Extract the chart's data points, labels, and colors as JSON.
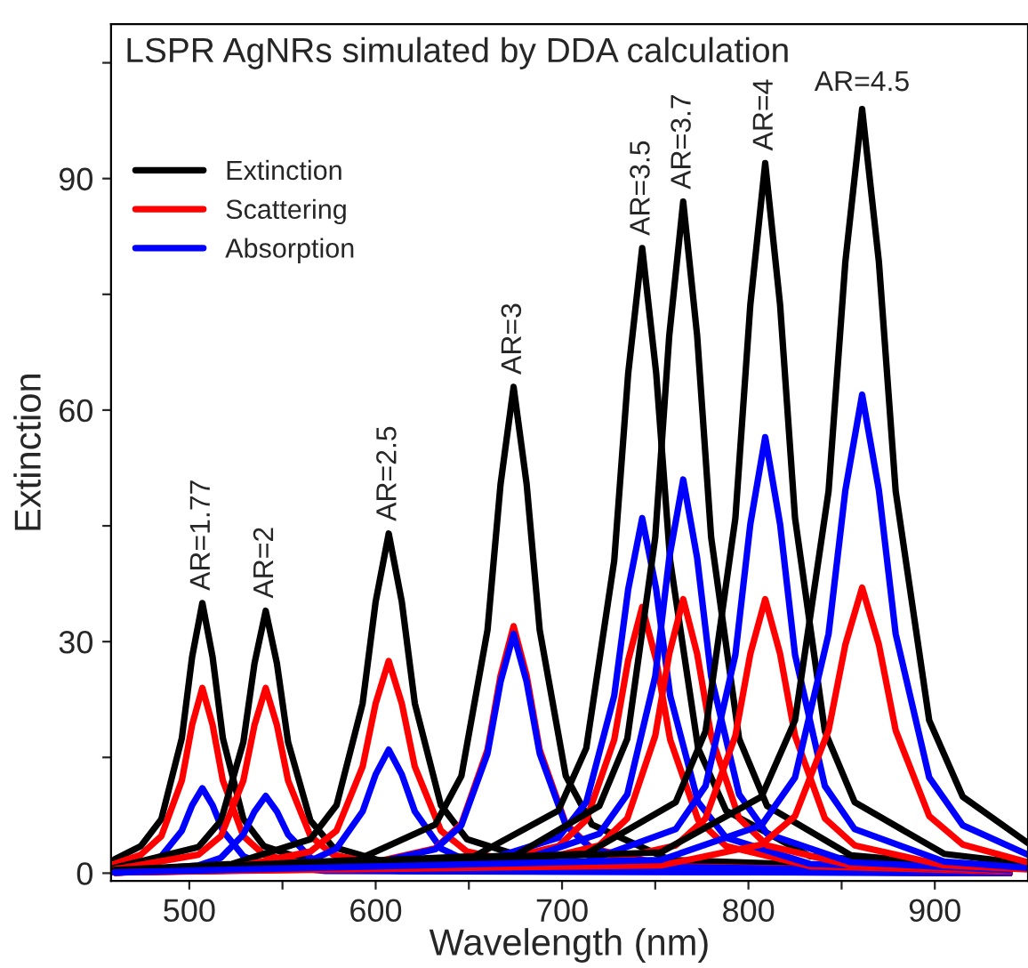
{
  "chart_data": {
    "type": "line",
    "title": "LSPR AgNRs simulated by DDA calculation",
    "xlabel": "Wavelength (nm)",
    "ylabel": "Extinction",
    "xlim": [
      458,
      950
    ],
    "ylim": [
      -1,
      110
    ],
    "xticks": [
      500,
      {
        "value": 550,
        "label": null
      },
      600,
      {
        "value": 650,
        "label": null
      },
      700,
      {
        "value": 750,
        "label": null
      },
      800,
      {
        "value": 850,
        "label": null
      },
      900
    ],
    "yticks": [
      0,
      {
        "value": 15,
        "label": null
      },
      30,
      {
        "value": 45,
        "label": null
      },
      60,
      {
        "value": 75,
        "label": null
      },
      90,
      {
        "value": 105,
        "label": null
      }
    ],
    "grid": false,
    "legend": "top left",
    "marker": "none",
    "line_style": "solid",
    "series": [
      {
        "name": "Extinction",
        "color": "#000000",
        "x": [
          460,
          474,
          485,
          496,
          501.5,
          507,
          512.5,
          518,
          529,
          540,
          573,
          940
        ],
        "values": [
          1.8,
          3.5,
          7,
          17.5,
          28,
          35,
          28,
          17.5,
          7,
          3.5,
          0.9,
          0
        ]
      },
      {
        "name": "Scattering",
        "color": "#ff0000",
        "x": [
          460,
          474,
          485,
          496,
          501.5,
          507,
          512.5,
          518,
          529,
          540,
          573,
          940
        ],
        "values": [
          1.2,
          2.4,
          4.8,
          12,
          19.2,
          24,
          19.2,
          12,
          4.8,
          2.4,
          0.6,
          0
        ]
      },
      {
        "name": "Absorption",
        "color": "#0000ff",
        "x": [
          460,
          474,
          485,
          496,
          501.5,
          507,
          512.5,
          518,
          529,
          540,
          573,
          940
        ],
        "values": [
          0.6,
          1.1,
          2.2,
          5.5,
          8.8,
          11,
          8.8,
          5.5,
          2.2,
          1.1,
          0.3,
          0
        ]
      },
      {
        "color": "#000000",
        "x": [
          460,
          505,
          517,
          529,
          535,
          541,
          547,
          553,
          565,
          577,
          613,
          940
        ],
        "values": [
          0.7,
          3.4,
          6.8,
          17,
          27.2,
          34,
          27.2,
          17,
          6.8,
          3.4,
          0.9,
          0
        ]
      },
      {
        "color": "#ff0000",
        "x": [
          460,
          505,
          517,
          529,
          535,
          541,
          547,
          553,
          565,
          577,
          613,
          940
        ],
        "values": [
          0.5,
          2.4,
          4.8,
          12,
          19.2,
          24,
          19.2,
          12,
          4.8,
          2.4,
          0.6,
          0
        ]
      },
      {
        "color": "#0000ff",
        "x": [
          460,
          505,
          517,
          529,
          535,
          541,
          547,
          553,
          565,
          577,
          613,
          940
        ],
        "values": [
          0.2,
          1,
          2,
          5,
          8,
          10,
          8,
          5,
          2,
          1,
          0.3,
          0
        ]
      },
      {
        "color": "#000000",
        "x": [
          460,
          523,
          565,
          579,
          593,
          600,
          607,
          614,
          621,
          635,
          649,
          691,
          940
        ],
        "values": [
          0.4,
          1.2,
          4.4,
          8.8,
          22,
          35.2,
          44,
          35.2,
          22,
          8.8,
          4.4,
          1.2,
          0.1
        ]
      },
      {
        "color": "#ff0000",
        "x": [
          460,
          523,
          565,
          579,
          593,
          600,
          607,
          614,
          621,
          635,
          649,
          691,
          940
        ],
        "values": [
          0.2,
          0.7,
          2.8,
          5.5,
          13.8,
          22,
          27.5,
          22,
          13.8,
          5.5,
          2.8,
          0.7,
          0
        ]
      },
      {
        "color": "#0000ff",
        "x": [
          460,
          523,
          565,
          579,
          593,
          600,
          607,
          614,
          621,
          635,
          649,
          691,
          940
        ],
        "values": [
          0.1,
          0.4,
          1.6,
          3.2,
          8,
          12.8,
          16,
          12.8,
          8,
          3.2,
          1.6,
          0.4,
          0
        ]
      },
      {
        "color": "#000000",
        "x": [
          460,
          590,
          632,
          646,
          660,
          667,
          674,
          681,
          688,
          702,
          716,
          758,
          940
        ],
        "values": [
          0.3,
          1.7,
          6.3,
          12.6,
          31.5,
          50.4,
          63,
          50.4,
          31.5,
          12.6,
          6.3,
          1.7,
          0.2
        ]
      },
      {
        "color": "#ff0000",
        "x": [
          460,
          590,
          632,
          646,
          660,
          667,
          674,
          681,
          688,
          702,
          716,
          758,
          940
        ],
        "values": [
          0.1,
          0.9,
          3.2,
          6.4,
          16,
          25.6,
          32,
          25.6,
          16,
          6.4,
          3.2,
          0.9,
          0.1
        ]
      },
      {
        "color": "#0000ff",
        "x": [
          460,
          590,
          632,
          646,
          660,
          667,
          674,
          681,
          688,
          702,
          716,
          758,
          940
        ],
        "values": [
          0.1,
          0.8,
          3.1,
          6.2,
          15.5,
          24.8,
          31,
          24.8,
          15.5,
          6.2,
          3.1,
          0.8,
          0.1
        ]
      },
      {
        "color": "#000000",
        "x": [
          460,
          653,
          698,
          713,
          728,
          735.5,
          743,
          750.5,
          758,
          773,
          788,
          833,
          940
        ],
        "values": [
          0.2,
          2.2,
          8.1,
          16.2,
          40.5,
          64.8,
          81,
          64.8,
          40.5,
          16.2,
          8.1,
          2.2,
          0.5
        ]
      },
      {
        "color": "#ff0000",
        "x": [
          460,
          653,
          698,
          713,
          728,
          735.5,
          743,
          750.5,
          758,
          773,
          788,
          833,
          940
        ],
        "values": [
          0.1,
          0.9,
          3.5,
          6.9,
          17.3,
          27.6,
          34.5,
          27.6,
          17.3,
          6.9,
          3.5,
          0.9,
          0.2
        ]
      },
      {
        "color": "#0000ff",
        "x": [
          460,
          653,
          698,
          713,
          728,
          735.5,
          743,
          750.5,
          758,
          773,
          788,
          833,
          940
        ],
        "values": [
          0.1,
          1.2,
          4.6,
          9.2,
          23,
          36.8,
          46,
          36.8,
          23,
          9.2,
          4.6,
          1.2,
          0.3
        ]
      },
      {
        "color": "#000000",
        "x": [
          460,
          675,
          720,
          735,
          750,
          757.5,
          765,
          772.5,
          780,
          795,
          810,
          855,
          940
        ],
        "values": [
          0.2,
          2.3,
          8.7,
          17.4,
          43.5,
          69.6,
          87,
          69.6,
          43.5,
          17.4,
          8.7,
          2.3,
          0.6
        ]
      },
      {
        "color": "#ff0000",
        "x": [
          460,
          675,
          720,
          735,
          750,
          757.5,
          765,
          772.5,
          780,
          795,
          810,
          855,
          940
        ],
        "values": [
          0.1,
          1,
          3.6,
          7.1,
          17.8,
          28.4,
          35.5,
          28.4,
          17.8,
          7.1,
          3.6,
          1,
          0.3
        ]
      },
      {
        "color": "#0000ff",
        "x": [
          460,
          675,
          720,
          735,
          750,
          757.5,
          765,
          772.5,
          780,
          795,
          810,
          855,
          940
        ],
        "values": [
          0.1,
          1.4,
          5.1,
          10.2,
          25.5,
          40.8,
          51,
          40.8,
          25.5,
          10.2,
          5.1,
          1.4,
          0.4
        ]
      },
      {
        "color": "#000000",
        "x": [
          460,
          713,
          761,
          777,
          793,
          801,
          809,
          817,
          825,
          841,
          857,
          905,
          950
        ],
        "values": [
          0.2,
          2.5,
          9.2,
          18.4,
          46,
          73.6,
          92,
          73.6,
          46,
          18.4,
          9.2,
          2.5,
          1.2
        ]
      },
      {
        "color": "#ff0000",
        "x": [
          460,
          713,
          761,
          777,
          793,
          801,
          809,
          817,
          825,
          841,
          857,
          905,
          950
        ],
        "values": [
          0.1,
          1,
          3.6,
          7.1,
          17.8,
          28.4,
          35.5,
          28.4,
          17.8,
          7.1,
          3.6,
          1,
          0.5
        ]
      },
      {
        "color": "#0000ff",
        "x": [
          460,
          713,
          761,
          777,
          793,
          801,
          809,
          817,
          825,
          841,
          857,
          905,
          950
        ],
        "values": [
          0.1,
          1.5,
          5.7,
          11.3,
          28.3,
          45.2,
          56.5,
          45.2,
          28.3,
          11.3,
          5.7,
          1.5,
          0.7
        ]
      },
      {
        "color": "#000000",
        "x": [
          460,
          753,
          807,
          825,
          843,
          852,
          861,
          870,
          879,
          897,
          915,
          950
        ],
        "values": [
          0.2,
          2.7,
          9.9,
          19.8,
          49.5,
          79.2,
          99,
          79.2,
          49.5,
          19.8,
          9.9,
          3.9
        ]
      },
      {
        "color": "#ff0000",
        "x": [
          460,
          753,
          807,
          825,
          843,
          852,
          861,
          870,
          879,
          897,
          915,
          950
        ],
        "values": [
          0.1,
          1,
          3.7,
          7.4,
          18.5,
          29.6,
          37,
          29.6,
          18.5,
          7.4,
          3.7,
          1.4
        ]
      },
      {
        "color": "#0000ff",
        "x": [
          460,
          753,
          807,
          825,
          843,
          852,
          861,
          870,
          879,
          897,
          915,
          950
        ],
        "values": [
          0.1,
          1.7,
          6.2,
          12.4,
          31,
          49.6,
          62,
          49.6,
          31,
          12.4,
          6.2,
          2.4
        ]
      }
    ],
    "annotations": [
      {
        "text": "AR=1.77",
        "x": 507,
        "y": 35
      },
      {
        "text": "AR=2",
        "x": 541,
        "y": 34
      },
      {
        "text": "AR=2.5",
        "x": 607,
        "y": 44
      },
      {
        "text": "AR=3",
        "x": 674,
        "y": 63
      },
      {
        "text": "AR=3.5",
        "x": 743,
        "y": 81
      },
      {
        "text": "AR=3.7",
        "x": 765,
        "y": 87
      },
      {
        "text": "AR=4",
        "x": 809,
        "y": 92
      },
      {
        "text": "AR=4.5",
        "x": 861,
        "y": 99
      }
    ]
  }
}
